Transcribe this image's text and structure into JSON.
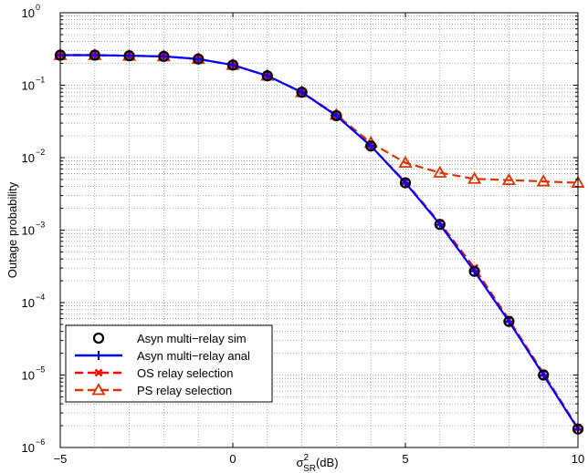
{
  "chart_data": {
    "type": "line",
    "ylog": true,
    "xlim": [
      -5,
      10
    ],
    "ylim_exp": [
      -6,
      0
    ],
    "grid": true,
    "xlabel_main": "σ",
    "xlabel_sup": "2",
    "xlabel_sub": "SR",
    "xlabel_tail": "(dB)",
    "ylabel": "Outage probability",
    "x_ticks": [
      -5,
      0,
      5,
      10
    ],
    "x_tick_labels": [
      "−5",
      "0",
      "5",
      "10"
    ],
    "y_ticks_exp": [
      0,
      -1,
      -2,
      -3,
      -4,
      -5,
      -6
    ],
    "y_tick_base": "10",
    "y_tick_exps": [
      "0",
      "−1",
      "−2",
      "−3",
      "−4",
      "−5",
      "−6"
    ],
    "legend_position": "bottom-left",
    "series": [
      {
        "name": "Asyn multi−relay sim",
        "color": "#000000",
        "marker": "circle",
        "line": "none",
        "x": [
          -5,
          -4,
          -3,
          -2,
          -1,
          0,
          1,
          2,
          3,
          4,
          5,
          6,
          7,
          8,
          9,
          10
        ],
        "y": [
          0.26,
          0.26,
          0.255,
          0.25,
          0.23,
          0.19,
          0.135,
          0.08,
          0.038,
          0.0145,
          0.0045,
          0.0012,
          0.00027,
          5.5e-05,
          1e-05,
          1.8e-06
        ]
      },
      {
        "name": "Asyn multi−relay anal",
        "color": "#0000ff",
        "marker": "plus",
        "line": "solid",
        "x": [
          -5,
          -4,
          -3,
          -2,
          -1,
          0,
          1,
          2,
          3,
          4,
          5,
          6,
          7,
          8,
          9,
          10
        ],
        "y": [
          0.26,
          0.26,
          0.255,
          0.25,
          0.23,
          0.19,
          0.135,
          0.08,
          0.038,
          0.0145,
          0.0045,
          0.0012,
          0.00027,
          5.5e-05,
          1e-05,
          1.8e-06
        ]
      },
      {
        "name": "OS relay selection",
        "color": "#ff0000",
        "marker": "x",
        "line": "dashed",
        "x": [
          -5,
          -4,
          -3,
          -2,
          -1,
          0,
          1,
          2,
          3,
          4,
          5,
          6,
          7,
          8,
          9,
          10
        ],
        "y": [
          0.26,
          0.26,
          0.255,
          0.25,
          0.23,
          0.19,
          0.135,
          0.08,
          0.038,
          0.0145,
          0.0046,
          0.00125,
          0.0003,
          5.8e-05,
          1.05e-05,
          1.85e-06
        ]
      },
      {
        "name": "PS relay selection",
        "color": "#dd3300",
        "marker": "triangle",
        "line": "dashed",
        "x": [
          -5,
          -4,
          -3,
          -2,
          -1,
          0,
          1,
          2,
          3,
          4,
          5,
          6,
          7,
          8,
          9,
          10
        ],
        "y": [
          0.26,
          0.26,
          0.255,
          0.25,
          0.23,
          0.19,
          0.135,
          0.08,
          0.039,
          0.016,
          0.0085,
          0.0062,
          0.0051,
          0.0049,
          0.0047,
          0.0045
        ]
      }
    ]
  }
}
